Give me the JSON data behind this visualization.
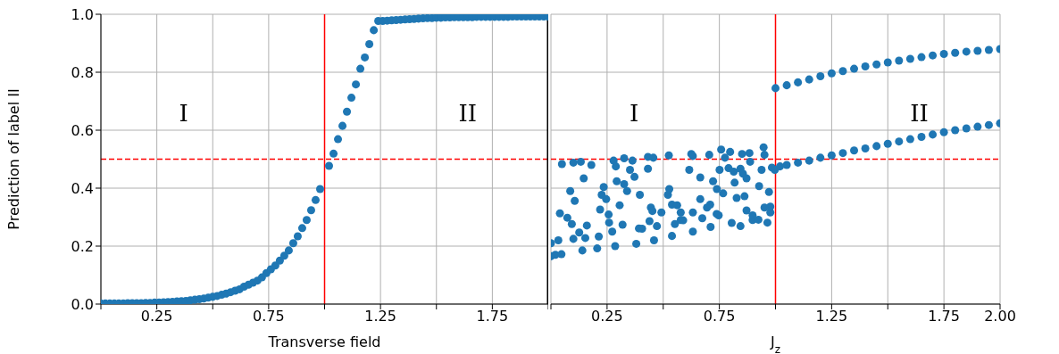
{
  "chart_data": [
    {
      "type": "scatter",
      "ylabel": "Prediction of label II",
      "xlabel": "Transverse field",
      "xlim": [
        0,
        2
      ],
      "ylim": [
        0,
        1
      ],
      "xticks": [
        {
          "value": 0,
          "label": null
        },
        0.25,
        {
          "value": 0.5,
          "label": null
        },
        0.75,
        {
          "value": 1,
          "label": null
        },
        1.25,
        {
          "value": 1.5,
          "label": null
        },
        1.75,
        {
          "value": 2,
          "label": null
        }
      ],
      "yticks": [
        {
          "value": 0,
          "label": "0.0"
        },
        0.2,
        0.4,
        0.6,
        0.8,
        {
          "value": 1,
          "label": "1.0"
        }
      ],
      "grid": true,
      "marker": "circle",
      "ref_lines": [
        {
          "axis": "x",
          "value": 1,
          "color": "#ff0000",
          "line_style": "solid"
        },
        {
          "axis": "y",
          "value": 0.5,
          "color": "#ff0000",
          "line_style": "dashed"
        },
        {
          "axis": "x",
          "value": 2,
          "color": "#000000",
          "line_style": "solid"
        }
      ],
      "annotations": [
        "I",
        "II"
      ],
      "series": [
        {
          "color": "#1f77b4",
          "x": [
            0,
            0.02,
            0.04,
            0.06,
            0.08,
            0.1,
            0.12,
            0.14,
            0.16,
            0.18,
            0.2,
            0.22,
            0.24,
            0.26,
            0.28,
            0.3,
            0.32,
            0.34,
            0.36,
            0.38,
            0.4,
            0.42,
            0.44,
            0.46,
            0.48,
            0.5,
            0.52,
            0.54,
            0.56,
            0.58,
            0.6,
            0.62,
            0.64,
            0.66,
            0.68,
            0.7,
            0.72,
            0.74,
            0.76,
            0.78,
            0.8,
            0.82,
            0.84,
            0.86,
            0.88,
            0.9,
            0.92,
            0.94,
            0.96,
            0.98,
            1.02,
            1.04,
            1.06,
            1.08,
            1.1,
            1.12,
            1.14,
            1.16,
            1.18,
            1.2,
            1.22,
            1.24,
            1.26,
            1.28,
            1.3,
            1.32,
            1.34,
            1.36,
            1.38,
            1.4,
            1.42,
            1.44,
            1.46,
            1.48,
            1.5,
            1.52,
            1.54,
            1.56,
            1.58,
            1.6,
            1.62,
            1.64,
            1.66,
            1.68,
            1.7,
            1.72,
            1.74,
            1.76,
            1.78,
            1.8,
            1.82,
            1.84,
            1.86,
            1.88,
            1.9,
            1.92,
            1.94,
            1.96,
            1.98,
            2.0
          ],
          "values": [
            0.002,
            0.002,
            0.002,
            0.002,
            0.002,
            0.002,
            0.003,
            0.003,
            0.003,
            0.003,
            0.004,
            0.004,
            0.005,
            0.005,
            0.006,
            0.007,
            0.008,
            0.009,
            0.01,
            0.011,
            0.013,
            0.015,
            0.017,
            0.019,
            0.022,
            0.025,
            0.028,
            0.032,
            0.036,
            0.041,
            0.046,
            0.051,
            0.06,
            0.067,
            0.074,
            0.081,
            0.092,
            0.107,
            0.12,
            0.133,
            0.15,
            0.167,
            0.185,
            0.21,
            0.234,
            0.262,
            0.29,
            0.324,
            0.359,
            0.397,
            0.477,
            0.519,
            0.569,
            0.615,
            0.664,
            0.712,
            0.758,
            0.812,
            0.851,
            0.897,
            0.945,
            0.977,
            0.977,
            0.978,
            0.979,
            0.98,
            0.981,
            0.982,
            0.983,
            0.984,
            0.985,
            0.986,
            0.987,
            0.987,
            0.988,
            0.988,
            0.989,
            0.989,
            0.99,
            0.99,
            0.99,
            0.99,
            0.99,
            0.991,
            0.991,
            0.991,
            0.991,
            0.991,
            0.991,
            0.991,
            0.991,
            0.992,
            0.992,
            0.992,
            0.992,
            0.992,
            0.992,
            0.992,
            0.992,
            0.992
          ]
        }
      ]
    },
    {
      "type": "scatter",
      "xlabel": "J$_{z}$",
      "xlim": [
        0,
        2
      ],
      "ylim": [
        0,
        1
      ],
      "tick_labels": "x",
      "xticks": [
        {
          "value": 0,
          "label": null
        },
        0.25,
        {
          "value": 0.5,
          "label": null
        },
        0.75,
        {
          "value": 1,
          "label": null
        },
        1.25,
        {
          "value": 1.5,
          "label": null
        },
        1.75,
        {
          "value": 2,
          "label": "2.00"
        }
      ],
      "yticks": [
        0,
        0.2,
        0.4,
        0.6,
        0.8,
        1
      ],
      "grid": true,
      "marker": "circle",
      "ref_lines": [
        {
          "axis": "x",
          "value": 1,
          "color": "#ff0000",
          "line_style": "solid"
        },
        {
          "axis": "y",
          "value": 0.5,
          "color": "#ff0000",
          "line_style": "dashed"
        }
      ],
      "annotations": [
        "I",
        "II"
      ],
      "series": [
        {
          "color": "#1f77b4",
          "x": [
            0,
            0,
            0.02,
            0.047,
            0.14,
            0.206,
            0.286,
            0.38,
            0.459,
            0.539,
            0.632,
            0.711,
            0.805,
            0.898,
            0.977,
            0.033,
            0.1,
            0.153,
            0.273,
            0.406,
            0.578,
            0.738,
            0.871,
            0.977,
            0.951,
            0.049,
            0.1,
            0.133,
            0.18,
            0.146,
            0.086,
            0.106,
            0.04,
            0.073,
            0.093,
            0.16,
            0.126,
            0.213,
            0.219,
            0.226,
            0.235,
            0.246,
            0.257,
            0.259,
            0.279,
            0.289,
            0.293,
            0.306,
            0.326,
            0.326,
            0.339,
            0.352,
            0.363,
            0.372,
            0.319,
            0.396,
            0.392,
            0.432,
            0.432,
            0.456,
            0.445,
            0.452,
            0.439,
            0.472,
            0.492,
            0.521,
            0.527,
            0.525,
            0.539,
            0.562,
            0.552,
            0.578,
            0.589,
            0.616,
            0.625,
            0.632,
            0.632,
            0.665,
            0.665,
            0.674,
            0.695,
            0.709,
            0.705,
            0.722,
            0.739,
            0.747,
            0.751,
            0.758,
            0.767,
            0.775,
            0.791,
            0.798,
            0.814,
            0.818,
            0.827,
            0.844,
            0.851,
            0.855,
            0.862,
            0.871,
            0.884,
            0.887,
            0.927,
            0.938,
            0.947,
            0.951,
            0.971,
            0.984,
            0.997,
            0.964,
            0.924,
            0.844,
            0.898,
            1.02,
            1.05,
            1.1,
            1.15,
            1.2,
            1.25,
            1.3,
            1.35,
            1.4,
            1.45,
            1.5,
            1.55,
            1.6,
            1.65,
            1.7,
            1.75,
            1.8,
            1.85,
            1.9,
            1.95,
            2.0,
            1.0,
            1.05,
            1.1,
            1.15,
            1.2,
            1.25,
            1.3,
            1.35,
            1.4,
            1.45,
            1.5,
            1.55,
            1.6,
            1.65,
            1.7,
            1.75,
            1.8,
            1.85,
            1.9,
            1.95,
            2.0
          ],
          "values": [
            0.165,
            0.21,
            0.17,
            0.172,
            0.185,
            0.192,
            0.2,
            0.208,
            0.22,
            0.235,
            0.25,
            0.266,
            0.28,
            0.29,
            0.316,
            0.22,
            0.225,
            0.228,
            0.25,
            0.26,
            0.29,
            0.311,
            0.323,
            0.336,
            0.333,
            0.483,
            0.488,
            0.491,
            0.48,
            0.434,
            0.39,
            0.356,
            0.313,
            0.298,
            0.276,
            0.271,
            0.247,
            0.233,
            0.326,
            0.377,
            0.404,
            0.362,
            0.309,
            0.281,
            0.495,
            0.475,
            0.424,
            0.341,
            0.503,
            0.414,
            0.39,
            0.463,
            0.495,
            0.439,
            0.274,
            0.377,
            0.261,
            0.508,
            0.467,
            0.505,
            0.333,
            0.321,
            0.286,
            0.269,
            0.316,
            0.377,
            0.397,
            0.513,
            0.343,
            0.341,
            0.276,
            0.316,
            0.289,
            0.463,
            0.518,
            0.511,
            0.316,
            0.362,
            0.437,
            0.296,
            0.333,
            0.343,
            0.515,
            0.424,
            0.397,
            0.306,
            0.463,
            0.533,
            0.382,
            0.505,
            0.469,
            0.525,
            0.457,
            0.419,
            0.366,
            0.467,
            0.518,
            0.45,
            0.372,
            0.434,
            0.521,
            0.491,
            0.407,
            0.463,
            0.541,
            0.515,
            0.387,
            0.471,
            0.463,
            0.281,
            0.291,
            0.269,
            0.306,
            0.475,
            0.48,
            0.488,
            0.495,
            0.505,
            0.513,
            0.521,
            0.53,
            0.537,
            0.545,
            0.553,
            0.561,
            0.569,
            0.577,
            0.585,
            0.593,
            0.6,
            0.606,
            0.612,
            0.618,
            0.624,
            0.745,
            0.755,
            0.765,
            0.775,
            0.786,
            0.796,
            0.804,
            0.812,
            0.82,
            0.827,
            0.834,
            0.84,
            0.846,
            0.852,
            0.858,
            0.863,
            0.867,
            0.871,
            0.874,
            0.877,
            0.88
          ]
        }
      ]
    }
  ]
}
